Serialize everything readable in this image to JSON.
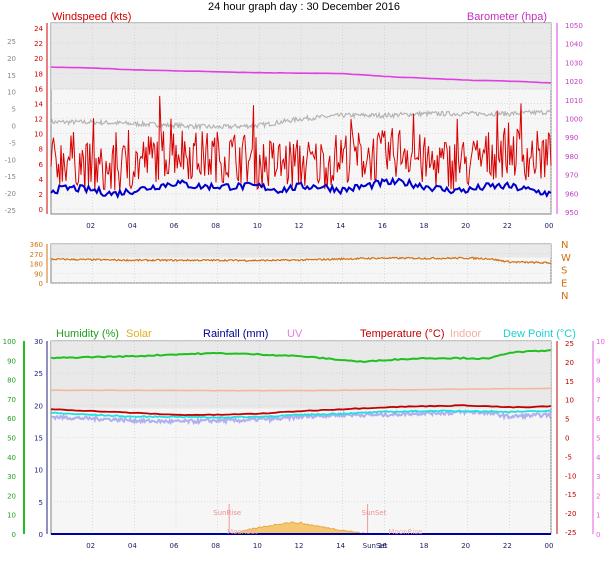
{
  "title": "24 hour graph day : 30 December 2016",
  "colors": {
    "windspeed": "#d80000",
    "windavg": "#0000c8",
    "barometer": "#e040e0",
    "gust_grey": "#b4b4b4",
    "direction": "#d07010",
    "humidity": "#20c020",
    "solar": "#f0b030",
    "rainfall": "#0000a0",
    "uv": "#e080e0",
    "temperature": "#c00000",
    "indoor": "#f4b8a0",
    "dewpoint": "#20e0e0",
    "chill": "#b0b0f0",
    "sunrise": "#f08080"
  },
  "x_ticks": [
    "02",
    "04",
    "06",
    "08",
    "10",
    "12",
    "14",
    "16",
    "18",
    "20",
    "22",
    "00"
  ],
  "chart_data": [
    {
      "type": "line",
      "left_label": "Windspeed (kts)",
      "right_label": "Barometer (hpa)",
      "left_ticks": [
        "24",
        "22",
        "20",
        "18",
        "16",
        "14",
        "12",
        "10",
        "8",
        "6",
        "4",
        "2",
        "0"
      ],
      "far_left_ticks": [
        "25",
        "20",
        "15",
        "10",
        "5",
        "0",
        "-5",
        "-10",
        "-15",
        "-20",
        "-25"
      ],
      "right_ticks": [
        "1050",
        "1040",
        "1030",
        "1020",
        "1010",
        "1000",
        "990",
        "980",
        "970",
        "960",
        "950"
      ],
      "x_range": [
        0,
        24
      ],
      "ylim": [
        0,
        25
      ],
      "series": [
        {
          "key": "windspeed",
          "values_desc": "gusty noisy",
          "x": [
            0,
            1,
            2,
            3,
            4,
            5,
            6,
            7,
            8,
            9,
            10,
            11,
            12,
            13,
            14,
            15,
            16,
            17,
            18,
            19,
            20,
            21,
            22,
            23,
            24
          ],
          "values": [
            6,
            7,
            5,
            5,
            6,
            7,
            8,
            7,
            7,
            7,
            6,
            6,
            6,
            6,
            7,
            7,
            7,
            8,
            6,
            6,
            6,
            7,
            8,
            7,
            7
          ]
        },
        {
          "key": "windavg",
          "x": [
            0,
            1,
            2,
            3,
            4,
            5,
            6,
            7,
            8,
            9,
            10,
            11,
            12,
            13,
            14,
            15,
            16,
            17,
            18,
            19,
            20,
            21,
            22,
            23,
            24
          ],
          "values": [
            2.5,
            2.8,
            2.5,
            2,
            2.5,
            3,
            3.5,
            3,
            3,
            3,
            3,
            2.5,
            3,
            3,
            2.5,
            3,
            3.5,
            3.5,
            3,
            2.5,
            2.5,
            3,
            3,
            2.5,
            2
          ]
        },
        {
          "key": "barometer",
          "axis": "right",
          "x": [
            0,
            2,
            4,
            6,
            8,
            10,
            12,
            14,
            16,
            18,
            20,
            22,
            24
          ],
          "values": [
            1027.5,
            1027,
            1026,
            1025.5,
            1025,
            1024.5,
            1024.3,
            1024,
            1022.5,
            1021.5,
            1020.5,
            1020,
            1019
          ]
        },
        {
          "key": "gust_grey",
          "axis": "far_left",
          "x": [
            0,
            2,
            4,
            6,
            8,
            10,
            12,
            14,
            16,
            18,
            20,
            22,
            24
          ],
          "values": [
            1,
            1,
            0.5,
            0,
            -0.5,
            0,
            2,
            3,
            3,
            3.5,
            3.5,
            3.5,
            4
          ]
        }
      ]
    },
    {
      "type": "line",
      "left_ticks": [
        "360",
        "270",
        "180",
        "90",
        "0"
      ],
      "right_ticks": [
        "N",
        "W",
        "S",
        "E",
        "N"
      ],
      "x_range": [
        0,
        24
      ],
      "ylim": [
        0,
        360
      ],
      "series": [
        {
          "key": "direction",
          "x": [
            0,
            2,
            4,
            6,
            8,
            10,
            12,
            14,
            16,
            18,
            20,
            21,
            22,
            23,
            24
          ],
          "values": [
            220,
            215,
            210,
            210,
            210,
            208,
            212,
            222,
            230,
            228,
            230,
            225,
            195,
            190,
            185
          ]
        }
      ]
    },
    {
      "type": "line",
      "labels": {
        "humidity": "Humidity (%)",
        "solar": "Solar",
        "rainfall": "Rainfall (mm)",
        "uv": "UV",
        "temperature": "Temperature (°C)",
        "indoor": "Indoor",
        "dewpoint": "Dew Point (°C)"
      },
      "far_left_ticks": [
        "100",
        "90",
        "80",
        "70",
        "60",
        "50",
        "40",
        "30",
        "20",
        "10",
        "0"
      ],
      "left_ticks": [
        "30",
        "25",
        "20",
        "15",
        "10",
        "5",
        "0"
      ],
      "right_ticks": [
        "25",
        "20",
        "15",
        "10",
        "5",
        "0",
        "-5",
        "-10",
        "-15",
        "-20",
        "-25"
      ],
      "far_right_ticks": [
        "10",
        "9",
        "8",
        "7",
        "6",
        "5",
        "4",
        "3",
        "2",
        "1",
        "0"
      ],
      "annotations": [
        "SunRise",
        "SunSet",
        "MoonSet",
        "MoonRise"
      ],
      "x_range": [
        0,
        24
      ],
      "series": [
        {
          "key": "humidity",
          "axis": "right",
          "x": [
            0,
            2,
            4,
            6,
            8,
            10,
            12,
            14,
            15,
            16,
            18,
            20,
            21,
            22,
            24
          ],
          "values": [
            21,
            21.3,
            21.5,
            22,
            22.3,
            22,
            21.5,
            20.5,
            20,
            20.5,
            21,
            21,
            20.8,
            22.5,
            23
          ]
        },
        {
          "key": "indoor",
          "axis": "right",
          "x": [
            0,
            4,
            8,
            12,
            16,
            20,
            24
          ],
          "values": [
            12.5,
            12.5,
            12.4,
            12.4,
            12.6,
            12.8,
            13
          ]
        },
        {
          "key": "temperature",
          "axis": "right",
          "x": [
            0,
            2,
            4,
            6,
            8,
            10,
            12,
            14,
            16,
            18,
            20,
            22,
            23,
            24
          ],
          "values": [
            7.5,
            7,
            6.5,
            6,
            6,
            6.3,
            7,
            7.5,
            8,
            8.3,
            8.5,
            8,
            8,
            8.3
          ]
        },
        {
          "key": "dewpoint",
          "axis": "right",
          "x": [
            0,
            2,
            4,
            6,
            8,
            10,
            12,
            14,
            16,
            18,
            20,
            22,
            24
          ],
          "values": [
            6.5,
            6,
            5.5,
            5.5,
            5.3,
            5.5,
            6,
            6.3,
            6.8,
            7,
            7,
            6.8,
            7
          ]
        },
        {
          "key": "chill",
          "axis": "right",
          "x": [
            0,
            1,
            2,
            3,
            4,
            5,
            6,
            7,
            8,
            9,
            10,
            11,
            12,
            13,
            14,
            15,
            16,
            17,
            18,
            19,
            20,
            21,
            22,
            23,
            24
          ],
          "values": [
            5.5,
            5.2,
            5,
            4.8,
            4.5,
            4.3,
            4.2,
            4.3,
            4.5,
            4.5,
            4.8,
            5,
            5.5,
            5.8,
            6,
            6,
            6,
            6.3,
            6.5,
            6.5,
            6.8,
            6.5,
            5.5,
            5.8,
            6
          ]
        },
        {
          "key": "solar",
          "axis": "left",
          "x": [
            8.5,
            9,
            10,
            11,
            11.5,
            12,
            13,
            14,
            15,
            15.2
          ],
          "values": [
            0,
            0.3,
            1,
            1.6,
            1.8,
            1.7,
            1.1,
            0.6,
            0.1,
            0
          ]
        },
        {
          "key": "rainfall",
          "axis": "left",
          "x": [
            0,
            24
          ],
          "values": [
            0,
            0
          ]
        }
      ]
    }
  ]
}
